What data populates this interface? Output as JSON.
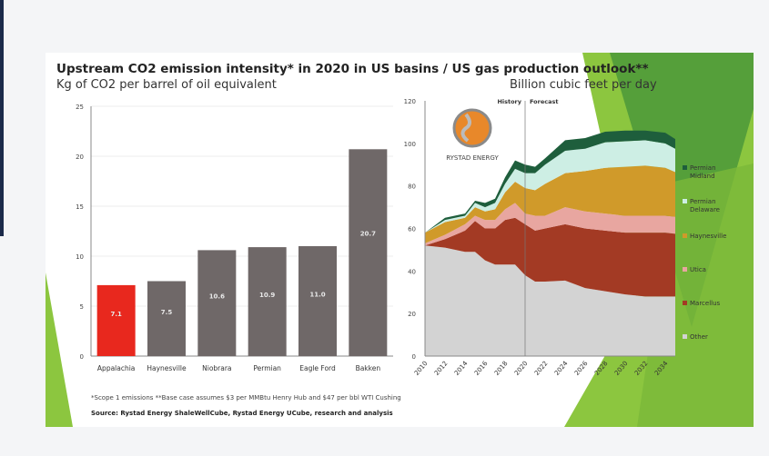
{
  "title": "Upstream CO2 emission intensity* in 2020 in US basins / US gas production outlook**",
  "footnote": "*Scope 1 emissions **Base case assumes $3 per MMBtu Henry Hub and $47 per bbl WTI Cushing",
  "source": "Source: Rystad Energy ShaleWellCube, Rystad Energy UCube, research and analysis",
  "logo_text": "RYSTAD ENERGY",
  "colors": {
    "highlight_bar": "#e8281e",
    "bar": "#6f6868",
    "green_dark": "#4f9a3a",
    "green_light": "#8cc63f"
  },
  "chart_data": [
    {
      "type": "bar",
      "ylabel": "Kg of CO2 per barrel of oil equivalent",
      "categories": [
        "Appalachia",
        "Haynesville",
        "Niobrara",
        "Permian",
        "Eagle Ford",
        "Bakken"
      ],
      "values": [
        7.1,
        7.5,
        10.6,
        10.9,
        11.0,
        20.7
      ],
      "data_labels": [
        "7.1",
        "7.5",
        "10.6",
        "10.9",
        "11.0",
        "20.7"
      ],
      "highlight": "Appalachia",
      "ylim": [
        0,
        25
      ],
      "yticks": [
        "0",
        "5",
        "10",
        "15",
        "20",
        "25"
      ],
      "grid": true
    },
    {
      "type": "area",
      "stacked": true,
      "ylabel": "Billion cubic feet per day",
      "ylim": [
        0,
        120
      ],
      "yticks": [
        "0",
        "20",
        "40",
        "60",
        "80",
        "100",
        "120"
      ],
      "xticks": [
        "2010",
        "2012",
        "2014",
        "2016",
        "2018",
        "2020",
        "2022",
        "2024",
        "2026",
        "2028",
        "2030",
        "2032",
        "2034"
      ],
      "annotations": [
        "History",
        "Forecast"
      ],
      "divider_year": 2020,
      "legend_placement": "right",
      "x": [
        2010,
        2012,
        2014,
        2015,
        2016,
        2017,
        2018,
        2019,
        2020,
        2021,
        2022,
        2024,
        2026,
        2028,
        2030,
        2032,
        2034,
        2035
      ],
      "series": [
        {
          "name": "Other",
          "color": "#d3d3d3",
          "values": [
            52,
            51,
            49,
            49,
            45,
            43,
            43,
            43,
            38,
            35,
            35,
            35.5,
            32,
            30.5,
            29,
            28,
            28,
            28
          ]
        },
        {
          "name": "Marcellus",
          "color": "#a33a24",
          "values": [
            0,
            4,
            10,
            14.5,
            15,
            17,
            21,
            22,
            24,
            24,
            25,
            26.5,
            28,
            28.5,
            29,
            30,
            30,
            29.5
          ]
        },
        {
          "name": "Utica",
          "color": "#e8a6a0",
          "values": [
            1,
            2,
            3,
            2.5,
            4,
            4,
            5,
            7,
            5,
            7,
            6,
            8,
            8,
            8,
            8,
            8,
            8,
            8
          ]
        },
        {
          "name": "Haynesville",
          "color": "#d09a2a",
          "values": [
            5,
            6,
            3,
            4,
            4,
            5,
            8,
            10,
            12,
            12,
            15,
            16,
            19,
            21.5,
            23,
            23.5,
            22.5,
            21
          ]
        },
        {
          "name": "Permian Delaware",
          "color": "#cdeee4",
          "values": [
            0,
            1,
            1,
            2,
            2,
            3,
            4,
            6,
            7,
            8,
            9,
            10.5,
            10.5,
            12,
            12,
            12,
            11.5,
            11
          ]
        },
        {
          "name": "Permian Midland",
          "color": "#1e5e3c",
          "values": [
            0,
            1,
            1,
            1,
            2,
            2,
            3,
            4,
            4,
            3,
            3,
            5,
            5,
            5,
            5,
            4.5,
            5,
            4.5
          ]
        }
      ]
    }
  ]
}
